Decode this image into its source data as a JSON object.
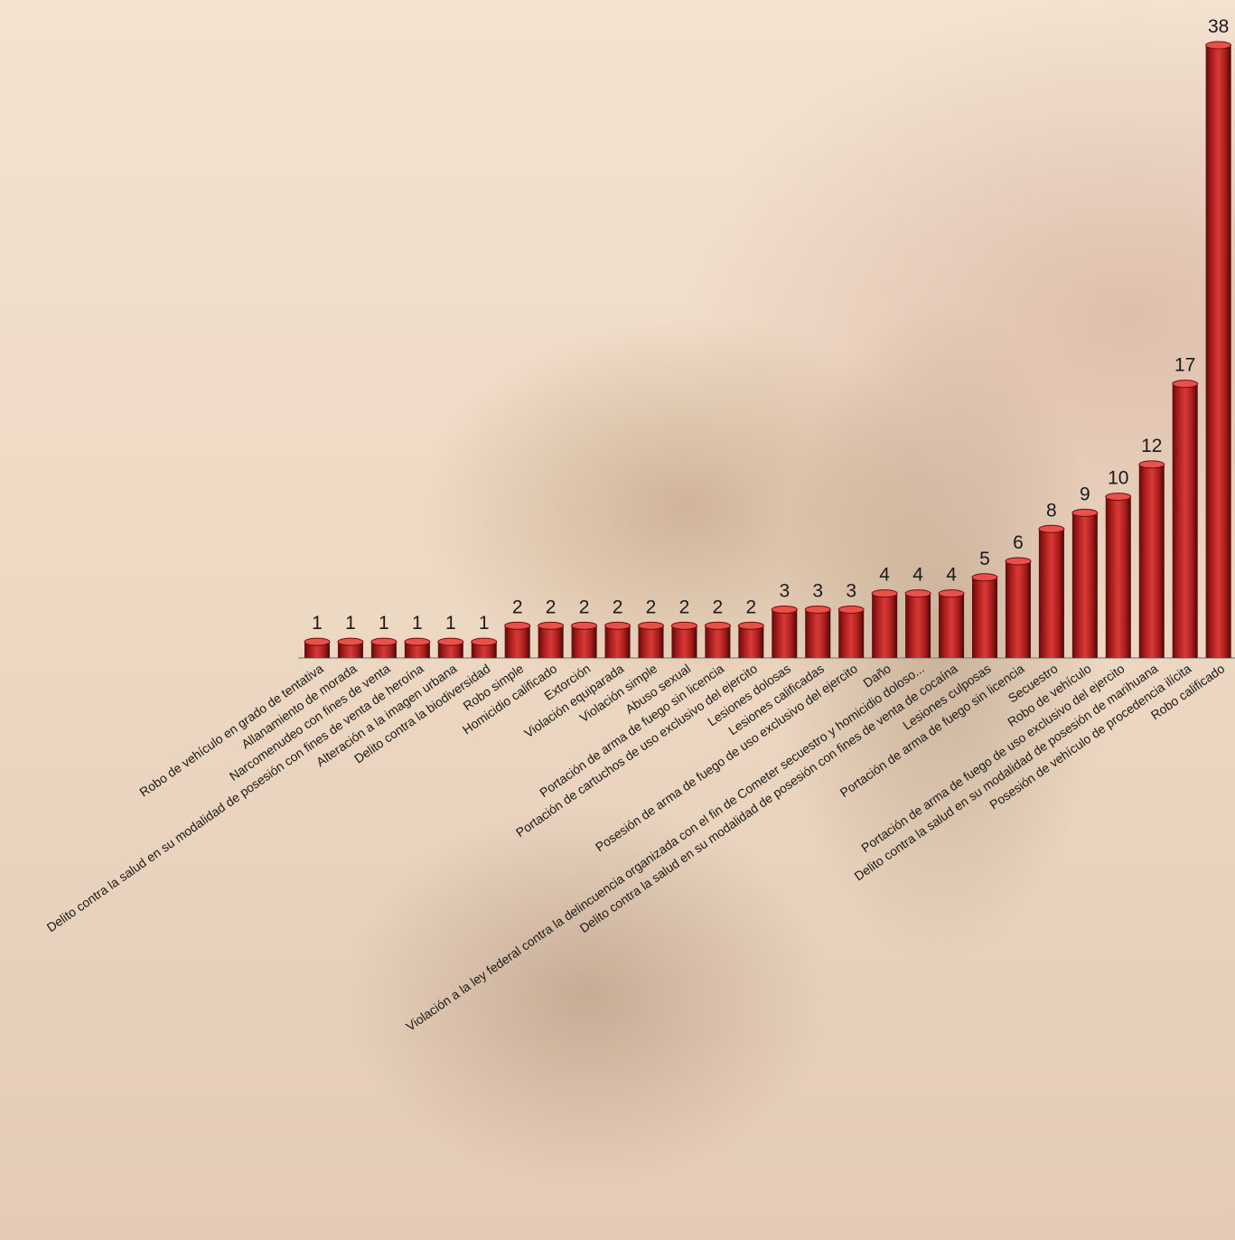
{
  "chart_data": {
    "type": "bar",
    "categories": [
      "Robo de vehículo en grado de tentativa",
      "Allanamiento de morada",
      "Narcomenudeo con fines de venta",
      "Delito contra la salud en su modalidad de posesión con fines de venta de heroína",
      "Alteración a la imagen urbana",
      "Delito contra la biodiversidad",
      "Robo simple",
      "Homicidio calificado",
      "Extorción",
      "Violación equiparada",
      "Violación simple",
      "Abuso sexual",
      "Portación de arma de fuego sin licencia",
      "Portación de cartuchos de uso exclusivo del ejercito",
      "Lesiones dolosas",
      "Lesiones calificadas",
      "Posesión de arma de fuego de uso exclusivo del ejercito",
      "Daño",
      "Violación a la ley federal contra la delincuencia organizada con el fin de Cometer secuestro y homicidio doloso...",
      "Delito contra la salud en su modalidad de posesión con fines de venta de cocaína",
      "Lesiones culposas",
      "Portación de arma de fuego sin licencia",
      "Secuestro",
      "Robo de vehículo",
      "Portación de arma de fuego de uso exclusivo del ejercito",
      "Delito contra la salud en su modalidad de posesión de marihuana",
      "Posesión de vehículo de procedencia ilícita",
      "Robo calificado"
    ],
    "values": [
      1,
      1,
      1,
      1,
      1,
      1,
      2,
      2,
      2,
      2,
      2,
      2,
      2,
      2,
      3,
      3,
      3,
      4,
      4,
      4,
      5,
      6,
      8,
      9,
      10,
      12,
      17,
      38
    ],
    "ylim": [
      0,
      38
    ],
    "grid": false,
    "legend": false,
    "colors": {
      "bar": "#c42a2a",
      "bar_dark": "#6e0d0d",
      "bar_light": "#e8504a"
    }
  }
}
